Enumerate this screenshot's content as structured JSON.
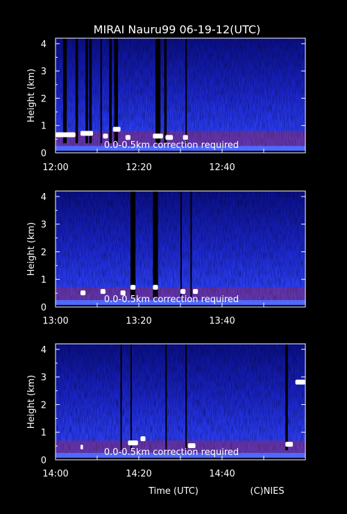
{
  "title": "MIRAI Nauru99 06-19-12(UTC)",
  "footer": {
    "xlabel": "Time (UTC)",
    "credit": "(C)NIES"
  },
  "colors": {
    "background": "#000000",
    "echo_blue": "#1f2fe0",
    "noise_dark": "#000011",
    "aerosol_red": "#c0202a",
    "cloud_white": "#ffffff",
    "text": "#ffffff"
  },
  "chart_data": [
    {
      "type": "heatmap",
      "title": "MIRAI Nauru99 06-19-12(UTC)",
      "ylabel": "Height (km)",
      "ylim": [
        0,
        4.2
      ],
      "yticks": [
        "0",
        "1",
        "2",
        "3",
        "4"
      ],
      "xlim": [
        "12:00",
        "13:00"
      ],
      "xticks": [
        "12:00",
        "12:20",
        "12:40"
      ],
      "note": "0.0-0.5km correction required",
      "gaps": [
        [
          12.03,
          12.045
        ],
        [
          12.08,
          12.09
        ],
        [
          12.12,
          12.13
        ],
        [
          12.135,
          12.145
        ],
        [
          12.18,
          12.185
        ],
        [
          12.215,
          12.225
        ],
        [
          12.235,
          12.25
        ],
        [
          12.4,
          12.42
        ],
        [
          12.435,
          12.445
        ],
        [
          12.52,
          12.525
        ]
      ],
      "clouds": [
        [
          12.0,
          12.08,
          0.65
        ],
        [
          12.1,
          12.15,
          0.7
        ],
        [
          12.19,
          12.21,
          0.6
        ],
        [
          12.23,
          12.26,
          0.85
        ],
        [
          12.28,
          12.3,
          0.55
        ],
        [
          12.39,
          12.43,
          0.6
        ],
        [
          12.44,
          12.47,
          0.55
        ],
        [
          12.51,
          12.53,
          0.55
        ]
      ],
      "aerosol_top_km": 0.8
    },
    {
      "type": "heatmap",
      "ylabel": "Height (km)",
      "ylim": [
        0,
        4.2
      ],
      "yticks": [
        "0",
        "1",
        "2",
        "3",
        "4"
      ],
      "xlim": [
        "13:00",
        "14:00"
      ],
      "xticks": [
        "13:00",
        "13:20",
        "13:40"
      ],
      "note": "0.0-0.5km correction required",
      "gaps": [
        [
          13.3,
          13.32
        ],
        [
          13.39,
          13.41
        ],
        [
          13.5,
          13.505
        ],
        [
          13.54,
          13.545
        ]
      ],
      "clouds": [
        [
          13.1,
          13.12,
          0.5
        ],
        [
          13.18,
          13.2,
          0.55
        ],
        [
          13.26,
          13.28,
          0.5
        ],
        [
          13.3,
          13.32,
          0.7
        ],
        [
          13.39,
          13.41,
          0.7
        ],
        [
          13.5,
          13.52,
          0.55
        ],
        [
          13.55,
          13.57,
          0.55
        ]
      ],
      "aerosol_top_km": 0.7
    },
    {
      "type": "heatmap",
      "ylabel": "Height (km)",
      "ylim": [
        0,
        4.2
      ],
      "yticks": [
        "0",
        "1",
        "2",
        "3",
        "4"
      ],
      "xlim": [
        "14:00",
        "15:00"
      ],
      "xticks": [
        "14:00",
        "14:20",
        "14:40"
      ],
      "note": "0.0-0.5km correction required",
      "gaps": [
        [
          14.26,
          14.265
        ],
        [
          14.3,
          14.305
        ],
        [
          14.44,
          14.445
        ],
        [
          14.52,
          14.525
        ],
        [
          14.92,
          14.93
        ]
      ],
      "clouds": [
        [
          14.1,
          14.11,
          0.45
        ],
        [
          14.29,
          14.33,
          0.6
        ],
        [
          14.34,
          14.36,
          0.75
        ],
        [
          14.53,
          14.56,
          0.5
        ],
        [
          14.92,
          14.95,
          0.55
        ],
        [
          14.96,
          15.0,
          2.8
        ]
      ],
      "aerosol_top_km": 0.7
    }
  ]
}
